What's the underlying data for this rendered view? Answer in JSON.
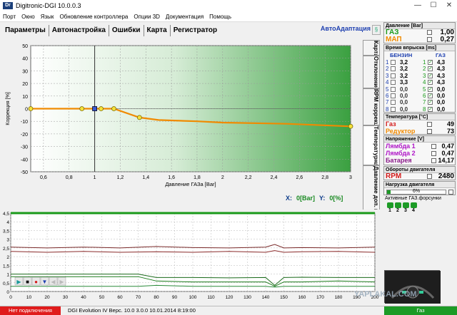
{
  "window": {
    "title": "Digitronic-DGI  10.0.0.3",
    "icon_text": "Dr",
    "controls": [
      "—",
      "☐",
      "✕"
    ]
  },
  "menu": [
    "Порт",
    "Окно",
    "Язык",
    "Обновление контроллера",
    "Опции 3D",
    "Документация",
    "Помощь"
  ],
  "tabs": [
    "Параметры",
    "Автонастройка",
    "Ошибки",
    "Карта",
    "Регистратор"
  ],
  "auto_adapt": "АвтоАдаптация",
  "vertical_tabs": [
    "Карта",
    "Отклонение",
    "RPM коррекция",
    "Температурная коррекция",
    "Давление доп. коррекция"
  ],
  "readout": {
    "x_label": "X:",
    "x_value": "0[Bar]",
    "y_label": "Y:",
    "y_value": "0[%]"
  },
  "chart_data": [
    {
      "type": "line",
      "title": "",
      "xlabel": "Давление ГАЗа [Bar]",
      "ylabel": "Коррекция [%]",
      "xlim": [
        0.5,
        3
      ],
      "ylim": [
        -50,
        50
      ],
      "x_ticks": [
        "0,6",
        "0,8",
        "1",
        "1,2",
        "1,4",
        "1,6",
        "1,8",
        "2",
        "2,2",
        "2,4",
        "2,6",
        "2,8",
        "3"
      ],
      "y_ticks": [
        "50",
        "40",
        "30",
        "20",
        "10",
        "0",
        "-10",
        "-20",
        "-30",
        "-40",
        "-50"
      ],
      "grid": true,
      "cursor_x": 1,
      "series": [
        {
          "x": [
            0.5,
            0.9,
            1.0,
            1.05,
            1.15,
            1.35,
            1.5,
            1.8,
            2.0,
            2.5,
            3.0
          ],
          "y": [
            0,
            0,
            0,
            0,
            0,
            -7,
            -9,
            -10,
            -11,
            -12,
            -14
          ]
        }
      ],
      "points": [
        {
          "x": 0.5,
          "y": 0
        },
        {
          "x": 0.9,
          "y": 0
        },
        {
          "x": 1.0,
          "y": 0
        },
        {
          "x": 1.05,
          "y": 0
        },
        {
          "x": 1.15,
          "y": 0
        },
        {
          "x": 1.35,
          "y": -7
        },
        {
          "x": 3.0,
          "y": -14
        }
      ]
    },
    {
      "type": "line",
      "title": "",
      "xlim": [
        0,
        200
      ],
      "ylim": [
        0,
        4.5
      ],
      "x_ticks": [
        "0",
        "10",
        "20",
        "30",
        "40",
        "50",
        "60",
        "70",
        "80",
        "90",
        "100",
        "110",
        "120",
        "130",
        "140",
        "150",
        "160",
        "170",
        "180",
        "190",
        "200"
      ],
      "y_ticks": [
        "4,5",
        "4",
        "3,5",
        "3",
        "2,5",
        "2",
        "1,5",
        "1",
        "0,5",
        "0"
      ],
      "grid": true,
      "series": [
        {
          "color": "#1a9a1a",
          "x": [
            0,
            200
          ],
          "y": [
            4.5,
            4.5
          ]
        },
        {
          "color": "#7a2a2a",
          "x": [
            0,
            20,
            40,
            60,
            80,
            100,
            120,
            140,
            145,
            150,
            160,
            180,
            200
          ],
          "y": [
            2.55,
            2.5,
            2.55,
            2.5,
            2.58,
            2.52,
            2.5,
            2.55,
            2.7,
            2.5,
            2.52,
            2.5,
            2.55
          ]
        },
        {
          "color": "#8a2a2a",
          "x": [
            0,
            20,
            40,
            60,
            80,
            100,
            120,
            140,
            145,
            150,
            160,
            180,
            200
          ],
          "y": [
            2.3,
            2.25,
            2.3,
            2.25,
            2.28,
            2.25,
            2.3,
            2.25,
            2.35,
            2.25,
            2.28,
            2.3,
            2.25
          ]
        },
        {
          "color": "#1a6a1a",
          "x": [
            0,
            20,
            40,
            60,
            70,
            80,
            100,
            120,
            140,
            145,
            150,
            160,
            180,
            200
          ],
          "y": [
            1.0,
            1.0,
            1.0,
            1.0,
            1.0,
            0.8,
            0.8,
            0.78,
            0.8,
            0.35,
            0.8,
            0.82,
            0.8,
            0.8
          ]
        },
        {
          "color": "#1a7a1a",
          "x": [
            0,
            20,
            40,
            60,
            70,
            80,
            100,
            120,
            140,
            145,
            150,
            160,
            180,
            200
          ],
          "y": [
            0.85,
            0.85,
            0.85,
            0.85,
            0.85,
            0.6,
            0.55,
            0.55,
            0.55,
            0.3,
            0.55,
            0.55,
            0.6,
            0.55
          ]
        },
        {
          "color": "#2a8a3a",
          "x": [
            0,
            20,
            40,
            60,
            70,
            80,
            100,
            120,
            140,
            145,
            150,
            160,
            180,
            200
          ],
          "y": [
            0.3,
            0.3,
            0.3,
            0.3,
            0.3,
            0.35,
            0.3,
            0.3,
            0.3,
            0.25,
            0.3,
            0.3,
            0.3,
            0.3
          ]
        }
      ]
    }
  ],
  "log_controls": [
    "▶",
    "■",
    "●",
    "▼",
    "◀",
    "▶"
  ],
  "right": {
    "pressure": {
      "header": "Давление [Bar]",
      "gas_label": "ГАЗ",
      "gas_value": "1,00",
      "map_label": "МАП",
      "map_value": "0,27"
    },
    "injection": {
      "header": "Время впрыска [ms]",
      "col_petrol": "БЕНЗИН",
      "col_gas": "ГАЗ",
      "petrol": [
        {
          "n": "1",
          "v": "3,2"
        },
        {
          "n": "2",
          "v": "3,2"
        },
        {
          "n": "3",
          "v": "3,2"
        },
        {
          "n": "4",
          "v": "3,3"
        },
        {
          "n": "5",
          "v": "0,0"
        },
        {
          "n": "6",
          "v": "0,0"
        },
        {
          "n": "7",
          "v": "0,0"
        },
        {
          "n": "8",
          "v": "0,0"
        }
      ],
      "gas": [
        {
          "n": "1",
          "v": "4,3"
        },
        {
          "n": "2",
          "v": "4,3"
        },
        {
          "n": "3",
          "v": "4,3"
        },
        {
          "n": "4",
          "v": "4,3"
        },
        {
          "n": "5",
          "v": "0,0"
        },
        {
          "n": "6",
          "v": "0,0"
        },
        {
          "n": "7",
          "v": "0,0"
        },
        {
          "n": "8",
          "v": "0,0"
        }
      ]
    },
    "temperature": {
      "header": "Температура [°C]",
      "gas_label": "Газ",
      "gas_value": "49",
      "red_label": "Редуктор",
      "red_value": "73"
    },
    "voltage": {
      "header": "Напряжение [V]",
      "l1_label": "Лямбда 1",
      "l1_value": "0,47",
      "l2_label": "Лямбда 2",
      "l2_value": "0,47",
      "bat_label": "Батарея",
      "bat_value": "14,17"
    },
    "rpm": {
      "header": "Обороты двигателя",
      "label": "RPM",
      "value": "2480"
    },
    "load": {
      "header": "Нагрузка двигателя",
      "value": "6%"
    },
    "active": {
      "header": "Активные ГАЗ.форсунки",
      "items": [
        "1",
        "2",
        "3",
        "4"
      ]
    }
  },
  "status": {
    "left": "Нет подключения",
    "info": "DGI Evolution IV   Верс.  10.0  3.0.0     10.01.2014  8:19:00",
    "right": "Газ"
  },
  "watermark": "YAPLAKAL.COM",
  "colors": {
    "petrol_orange": "#f08a00",
    "gas_green": "#1a9a1a",
    "rpm_red": "#d31a1a",
    "lambda_purple": "#b018c8"
  }
}
